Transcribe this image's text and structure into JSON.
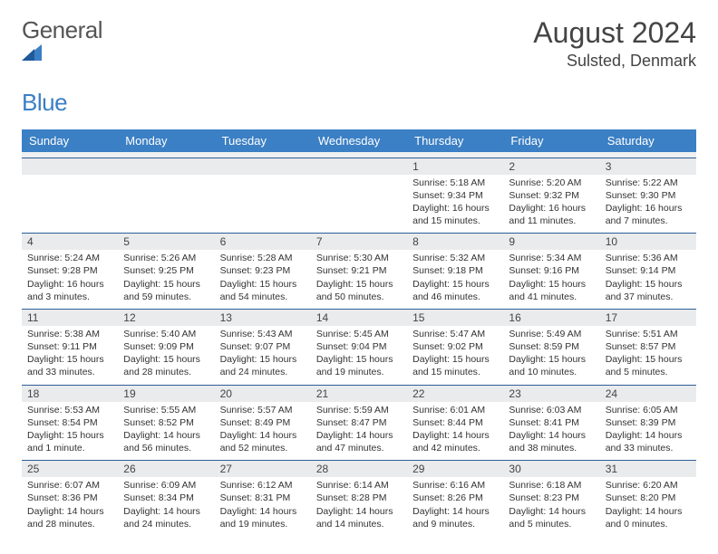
{
  "logo": {
    "general": "General",
    "blue": "Blue"
  },
  "title": "August 2024",
  "location": "Sulsted, Denmark",
  "colors": {
    "header_bg": "#3b7fc4",
    "header_border": "#2d5d97",
    "daynum_bg": "#e9ebed",
    "page_bg": "#ffffff",
    "text": "#333333",
    "logo_gray": "#555555",
    "logo_blue": "#3b7fc4"
  },
  "dow": [
    "Sunday",
    "Monday",
    "Tuesday",
    "Wednesday",
    "Thursday",
    "Friday",
    "Saturday"
  ],
  "weeks": [
    {
      "nums": [
        "",
        "",
        "",
        "",
        "1",
        "2",
        "3"
      ],
      "cells": [
        null,
        null,
        null,
        null,
        {
          "sunrise": "5:18 AM",
          "sunset": "9:34 PM",
          "daylight": "16 hours and 15 minutes."
        },
        {
          "sunrise": "5:20 AM",
          "sunset": "9:32 PM",
          "daylight": "16 hours and 11 minutes."
        },
        {
          "sunrise": "5:22 AM",
          "sunset": "9:30 PM",
          "daylight": "16 hours and 7 minutes."
        }
      ]
    },
    {
      "nums": [
        "4",
        "5",
        "6",
        "7",
        "8",
        "9",
        "10"
      ],
      "cells": [
        {
          "sunrise": "5:24 AM",
          "sunset": "9:28 PM",
          "daylight": "16 hours and 3 minutes."
        },
        {
          "sunrise": "5:26 AM",
          "sunset": "9:25 PM",
          "daylight": "15 hours and 59 minutes."
        },
        {
          "sunrise": "5:28 AM",
          "sunset": "9:23 PM",
          "daylight": "15 hours and 54 minutes."
        },
        {
          "sunrise": "5:30 AM",
          "sunset": "9:21 PM",
          "daylight": "15 hours and 50 minutes."
        },
        {
          "sunrise": "5:32 AM",
          "sunset": "9:18 PM",
          "daylight": "15 hours and 46 minutes."
        },
        {
          "sunrise": "5:34 AM",
          "sunset": "9:16 PM",
          "daylight": "15 hours and 41 minutes."
        },
        {
          "sunrise": "5:36 AM",
          "sunset": "9:14 PM",
          "daylight": "15 hours and 37 minutes."
        }
      ]
    },
    {
      "nums": [
        "11",
        "12",
        "13",
        "14",
        "15",
        "16",
        "17"
      ],
      "cells": [
        {
          "sunrise": "5:38 AM",
          "sunset": "9:11 PM",
          "daylight": "15 hours and 33 minutes."
        },
        {
          "sunrise": "5:40 AM",
          "sunset": "9:09 PM",
          "daylight": "15 hours and 28 minutes."
        },
        {
          "sunrise": "5:43 AM",
          "sunset": "9:07 PM",
          "daylight": "15 hours and 24 minutes."
        },
        {
          "sunrise": "5:45 AM",
          "sunset": "9:04 PM",
          "daylight": "15 hours and 19 minutes."
        },
        {
          "sunrise": "5:47 AM",
          "sunset": "9:02 PM",
          "daylight": "15 hours and 15 minutes."
        },
        {
          "sunrise": "5:49 AM",
          "sunset": "8:59 PM",
          "daylight": "15 hours and 10 minutes."
        },
        {
          "sunrise": "5:51 AM",
          "sunset": "8:57 PM",
          "daylight": "15 hours and 5 minutes."
        }
      ]
    },
    {
      "nums": [
        "18",
        "19",
        "20",
        "21",
        "22",
        "23",
        "24"
      ],
      "cells": [
        {
          "sunrise": "5:53 AM",
          "sunset": "8:54 PM",
          "daylight": "15 hours and 1 minute."
        },
        {
          "sunrise": "5:55 AM",
          "sunset": "8:52 PM",
          "daylight": "14 hours and 56 minutes."
        },
        {
          "sunrise": "5:57 AM",
          "sunset": "8:49 PM",
          "daylight": "14 hours and 52 minutes."
        },
        {
          "sunrise": "5:59 AM",
          "sunset": "8:47 PM",
          "daylight": "14 hours and 47 minutes."
        },
        {
          "sunrise": "6:01 AM",
          "sunset": "8:44 PM",
          "daylight": "14 hours and 42 minutes."
        },
        {
          "sunrise": "6:03 AM",
          "sunset": "8:41 PM",
          "daylight": "14 hours and 38 minutes."
        },
        {
          "sunrise": "6:05 AM",
          "sunset": "8:39 PM",
          "daylight": "14 hours and 33 minutes."
        }
      ]
    },
    {
      "nums": [
        "25",
        "26",
        "27",
        "28",
        "29",
        "30",
        "31"
      ],
      "cells": [
        {
          "sunrise": "6:07 AM",
          "sunset": "8:36 PM",
          "daylight": "14 hours and 28 minutes."
        },
        {
          "sunrise": "6:09 AM",
          "sunset": "8:34 PM",
          "daylight": "14 hours and 24 minutes."
        },
        {
          "sunrise": "6:12 AM",
          "sunset": "8:31 PM",
          "daylight": "14 hours and 19 minutes."
        },
        {
          "sunrise": "6:14 AM",
          "sunset": "8:28 PM",
          "daylight": "14 hours and 14 minutes."
        },
        {
          "sunrise": "6:16 AM",
          "sunset": "8:26 PM",
          "daylight": "14 hours and 9 minutes."
        },
        {
          "sunrise": "6:18 AM",
          "sunset": "8:23 PM",
          "daylight": "14 hours and 5 minutes."
        },
        {
          "sunrise": "6:20 AM",
          "sunset": "8:20 PM",
          "daylight": "14 hours and 0 minutes."
        }
      ]
    }
  ],
  "labels": {
    "sunrise": "Sunrise: ",
    "sunset": "Sunset: ",
    "daylight": "Daylight: "
  }
}
